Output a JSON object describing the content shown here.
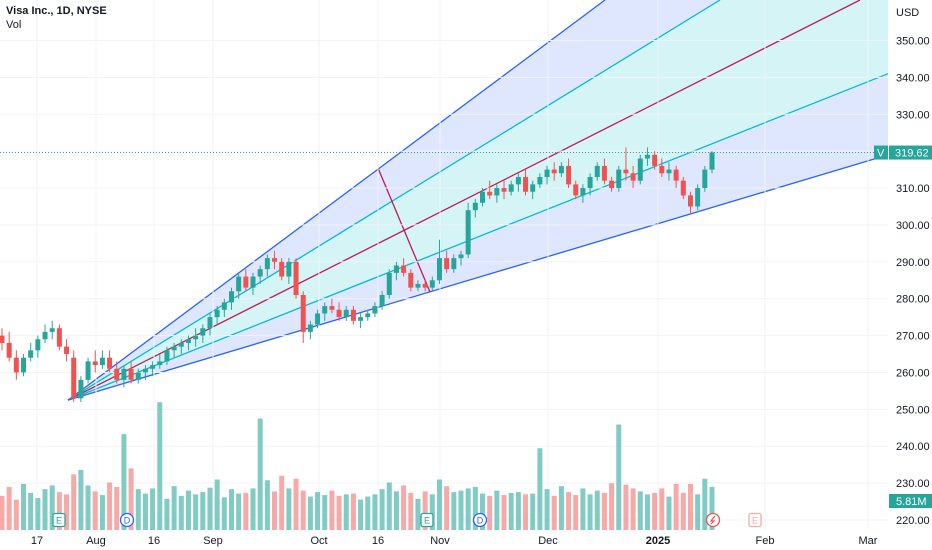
{
  "header": {
    "title": "Visa Inc., 1D, NYSE",
    "volume_label": "Vol"
  },
  "currency": "USD",
  "price_tag": {
    "symbol": "V",
    "value": "319.62"
  },
  "volume_tag": "5.81M",
  "colors": {
    "up": "#26a69a",
    "down": "#ef5350",
    "vol_up": "#80cbc4",
    "vol_down": "#f7a9a7",
    "fan_outer": "#2962ff",
    "fan_inner": "#00bcd4",
    "fan_mid": "#c2185b"
  },
  "event_badges": [
    {
      "label": "E",
      "kind": "earnings",
      "date": "2024-07-23"
    },
    {
      "label": "D",
      "kind": "dividend",
      "date": "2024-08-09"
    },
    {
      "label": "E",
      "kind": "earnings",
      "date": "2024-10-29"
    },
    {
      "label": "D",
      "kind": "dividend",
      "date": "2024-11-08"
    },
    {
      "label": "",
      "kind": "split-icon",
      "date": "2025-01-21"
    },
    {
      "label": "E",
      "kind": "earnings-upcoming",
      "date": "2025-01-30"
    }
  ],
  "chart_data": {
    "type": "candlestick",
    "title": "Visa Inc., 1D, NYSE",
    "ylim": [
      218,
      358
    ],
    "y_ticks": [
      220,
      230,
      240,
      250,
      260,
      270,
      280,
      290,
      300,
      310,
      320,
      330,
      340,
      350
    ],
    "x_ticks": [
      "17",
      "Aug",
      "16",
      "Sep",
      "Oct",
      "16",
      "Nov",
      "Dec",
      "2025",
      "Feb",
      "Mar"
    ],
    "last_price": 319.62,
    "gann_fan": {
      "anchor_close": 252.5,
      "lines": [
        "outer-high",
        "inner-high",
        "median",
        "inner-low",
        "outer-low"
      ]
    },
    "series": [
      {
        "name": "price",
        "values": [
          [
            270,
            272,
            266,
            268
          ],
          [
            268,
            271,
            263,
            264
          ],
          [
            264,
            266,
            258,
            260
          ],
          [
            260,
            265,
            259,
            264
          ],
          [
            264,
            268,
            263,
            266
          ],
          [
            266,
            270,
            264,
            269
          ],
          [
            269,
            273,
            268,
            271
          ],
          [
            271,
            274,
            269,
            272
          ],
          [
            272,
            273,
            266,
            267
          ],
          [
            267,
            269,
            263,
            265
          ],
          [
            264,
            266,
            252,
            253
          ],
          [
            253,
            259,
            252,
            258
          ],
          [
            258,
            264,
            257,
            263
          ],
          [
            263,
            266,
            260,
            262
          ],
          [
            262,
            266,
            261,
            264
          ],
          [
            264,
            266,
            260,
            261
          ],
          [
            261,
            263,
            257,
            258
          ],
          [
            258,
            262,
            256,
            261
          ],
          [
            261,
            263,
            257,
            258
          ],
          [
            258,
            261,
            257,
            260
          ],
          [
            260,
            262,
            258,
            261
          ],
          [
            261,
            263,
            259,
            262
          ],
          [
            262,
            265,
            261,
            263
          ],
          [
            263,
            267,
            262,
            266
          ],
          [
            266,
            268,
            264,
            267
          ],
          [
            267,
            269,
            265,
            268
          ],
          [
            268,
            270,
            266,
            269
          ],
          [
            269,
            272,
            267,
            270
          ],
          [
            270,
            273,
            268,
            272
          ],
          [
            272,
            276,
            270,
            275
          ],
          [
            275,
            278,
            273,
            277
          ],
          [
            277,
            280,
            275,
            279
          ],
          [
            279,
            283,
            277,
            282
          ],
          [
            282,
            287,
            280,
            286
          ],
          [
            286,
            288,
            282,
            283
          ],
          [
            283,
            287,
            281,
            286
          ],
          [
            286,
            289,
            284,
            288
          ],
          [
            288,
            292,
            286,
            291
          ],
          [
            291,
            293,
            288,
            290
          ],
          [
            290,
            291,
            285,
            286
          ],
          [
            286,
            291,
            284,
            290
          ],
          [
            290,
            291,
            280,
            281
          ],
          [
            281,
            282,
            268,
            271
          ],
          [
            271,
            274,
            269,
            273
          ],
          [
            273,
            277,
            272,
            276
          ],
          [
            276,
            279,
            274,
            278
          ],
          [
            278,
            280,
            276,
            277
          ],
          [
            277,
            279,
            274,
            275
          ],
          [
            275,
            278,
            274,
            277
          ],
          [
            277,
            278,
            273,
            274
          ],
          [
            274,
            276,
            272,
            275
          ],
          [
            275,
            277,
            274,
            276
          ],
          [
            276,
            279,
            275,
            278
          ],
          [
            278,
            282,
            277,
            281
          ],
          [
            281,
            288,
            280,
            287
          ],
          [
            287,
            290,
            285,
            289
          ],
          [
            289,
            291,
            286,
            287
          ],
          [
            287,
            288,
            282,
            283
          ],
          [
            283,
            285,
            282,
            284
          ],
          [
            284,
            285,
            282,
            283
          ],
          [
            283,
            286,
            282,
            285
          ],
          [
            285,
            296,
            284,
            291
          ],
          [
            291,
            293,
            287,
            288
          ],
          [
            288,
            292,
            287,
            291
          ],
          [
            291,
            293,
            289,
            292
          ],
          [
            292,
            306,
            291,
            304
          ],
          [
            304,
            307,
            302,
            306
          ],
          [
            306,
            310,
            305,
            309
          ],
          [
            309,
            312,
            307,
            308
          ],
          [
            308,
            311,
            306,
            310
          ],
          [
            310,
            312,
            307,
            309
          ],
          [
            309,
            312,
            308,
            311
          ],
          [
            311,
            314,
            309,
            313
          ],
          [
            313,
            315,
            308,
            309
          ],
          [
            309,
            312,
            307,
            311
          ],
          [
            311,
            314,
            310,
            313
          ],
          [
            313,
            316,
            311,
            315
          ],
          [
            315,
            317,
            312,
            314
          ],
          [
            314,
            317,
            313,
            316
          ],
          [
            316,
            318,
            310,
            311
          ],
          [
            311,
            312,
            307,
            308
          ],
          [
            308,
            311,
            306,
            310
          ],
          [
            310,
            314,
            308,
            313
          ],
          [
            313,
            317,
            312,
            316
          ],
          [
            316,
            318,
            311,
            312
          ],
          [
            312,
            313,
            309,
            310
          ],
          [
            310,
            316,
            309,
            315
          ],
          [
            315,
            321,
            312,
            314
          ],
          [
            314,
            316,
            310,
            312
          ],
          [
            312,
            319,
            311,
            318
          ],
          [
            318,
            321,
            316,
            319
          ],
          [
            319,
            320,
            315,
            316
          ],
          [
            316,
            318,
            313,
            314
          ],
          [
            314,
            317,
            312,
            315
          ],
          [
            315,
            316,
            310,
            312
          ],
          [
            312,
            313,
            307,
            308
          ],
          [
            308,
            309,
            303,
            305
          ],
          [
            305,
            311,
            304,
            310
          ],
          [
            310,
            316,
            309,
            315
          ],
          [
            315,
            320,
            314,
            319.62
          ]
        ]
      },
      {
        "name": "volume",
        "values": [
          4.6,
          5.8,
          4.1,
          6.2,
          5.0,
          4.3,
          5.5,
          6.0,
          5.1,
          4.8,
          7.5,
          8.1,
          6.0,
          5.2,
          4.7,
          6.4,
          5.8,
          12.9,
          8.3,
          5.5,
          4.9,
          5.6,
          17.2,
          4.2,
          5.9,
          4.6,
          5.3,
          4.8,
          5.1,
          5.7,
          6.8,
          4.4,
          5.5,
          4.9,
          5.0,
          5.6,
          15.0,
          6.7,
          5.2,
          7.3,
          5.6,
          6.9,
          5.3,
          4.5,
          5.1,
          4.7,
          5.3,
          4.6,
          4.8,
          4.9,
          4.1,
          4.5,
          4.8,
          5.5,
          6.4,
          5.2,
          6.0,
          5.0,
          4.2,
          5.2,
          4.8,
          6.8,
          5.9,
          5.1,
          5.3,
          5.6,
          5.8,
          4.9,
          4.6,
          5.3,
          4.7,
          5.0,
          5.1,
          4.8,
          4.9,
          11.0,
          5.5,
          4.6,
          5.9,
          5.1,
          4.7,
          5.6,
          4.8,
          5.3,
          5.0,
          6.3,
          14.2,
          6.1,
          5.6,
          5.2,
          4.8,
          5.0,
          5.6,
          4.5,
          6.2,
          5.0,
          6.2,
          4.8,
          6.9,
          5.81
        ]
      }
    ]
  }
}
